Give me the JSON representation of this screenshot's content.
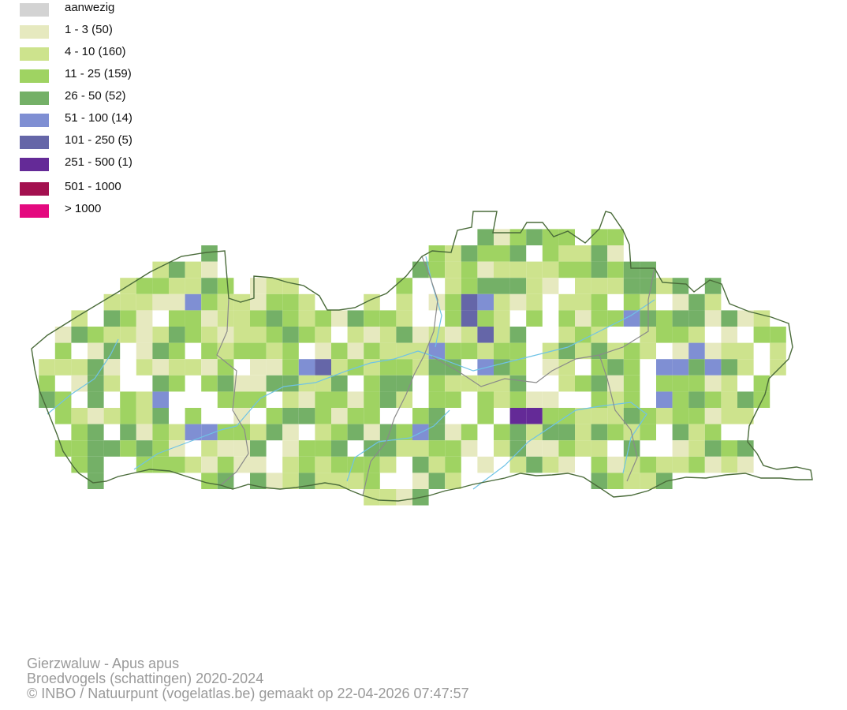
{
  "legend": [
    {
      "label": "aanwezig",
      "color": "#d3d3d3"
    },
    {
      "label": "1 - 3 (50)",
      "color": "#e6e9bf"
    },
    {
      "label": "4 - 10 (160)",
      "color": "#cde38d"
    },
    {
      "label": "11 - 25 (159)",
      "color": "#9fd362"
    },
    {
      "label": "26 - 50 (52)",
      "color": "#74b067"
    },
    {
      "label": "51 - 100 (14)",
      "color": "#7f8fd3"
    },
    {
      "label": "101 - 250 (5)",
      "color": "#6566a8"
    },
    {
      "label": "251 - 500 (1)",
      "color": "#642a97"
    },
    {
      "label": "501 - 1000",
      "color": "#a3104f"
    },
    {
      "label": "> 1000",
      "color": "#e4097f"
    }
  ],
  "map": {
    "border_color": "#4a6b3a",
    "province_color": "#8a8a8a",
    "river_color": "#6fc3e6",
    "tiles_shown": "raster of atlas squares colored by abundance class"
  },
  "footer": {
    "line1": "Gierzwaluw - Apus apus",
    "line2": "Broedvogels (schattingen) 2020-2024",
    "line3": "© INBO / Natuurpunt (vogelatlas.be) gemaakt op 22-04-2026 07:47:57"
  }
}
